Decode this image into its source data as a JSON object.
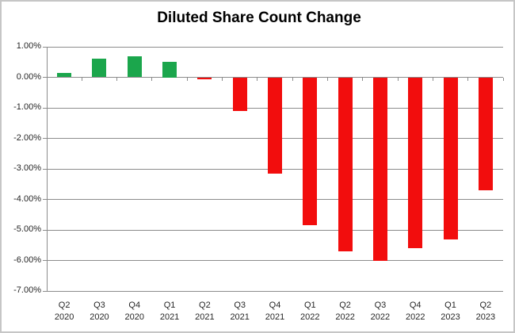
{
  "chart_data": {
    "type": "bar",
    "title": "Diluted Share Count Change",
    "categories": [
      "Q2 2020",
      "Q3 2020",
      "Q4 2020",
      "Q1 2021",
      "Q2 2021",
      "Q3 2021",
      "Q4 2021",
      "Q1 2022",
      "Q2 2022",
      "Q3 2022",
      "Q4 2022",
      "Q1 2023",
      "Q2 2023"
    ],
    "values": [
      0.15,
      0.6,
      0.7,
      0.5,
      -0.05,
      -1.1,
      -3.15,
      -4.85,
      -5.7,
      -6.0,
      -5.6,
      -5.3,
      -3.7
    ],
    "value_unit": "%",
    "xlabel": "",
    "ylabel": "",
    "ylim": [
      -7,
      1
    ],
    "ytick_step": 1,
    "ytick_labels": [
      "1.00%",
      "0.00%",
      "-1.00%",
      "-2.00%",
      "-3.00%",
      "-4.00%",
      "-5.00%",
      "-6.00%",
      "-7.00%"
    ],
    "grid": true,
    "legend": "none",
    "colors": {
      "positive_bar": "#1ba64c",
      "negative_bar": "#f20d0d",
      "gridline": "#8c8c8c",
      "axis": "#8c8c8c",
      "label_text": "#262626",
      "title_text": "#000000",
      "frame_border": "#c6c6c6",
      "background": "#ffffff"
    }
  }
}
